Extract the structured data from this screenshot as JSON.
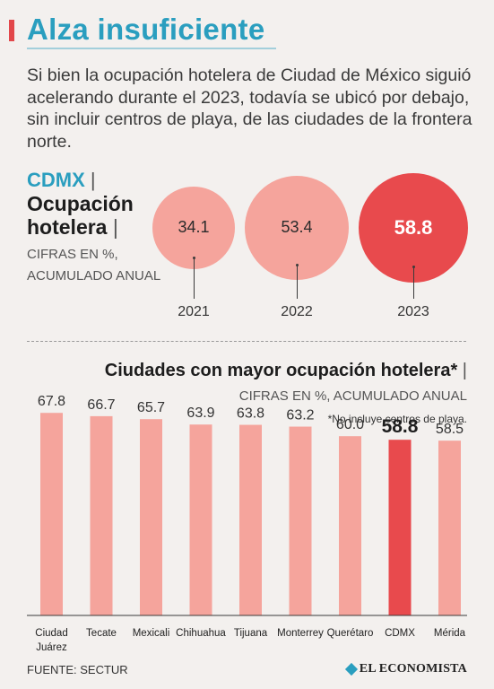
{
  "header": {
    "title": "Alza insuficiente",
    "intro": "Si bien la ocupación hotelera de Ciudad de México siguió acelerando durante el 2023, todavía se ubicó por debajo, sin incluir centros de playa, de las ciudades de la frontera norte."
  },
  "cdmx_section": {
    "city": "CDMX",
    "metric": "Ocupación hotelera",
    "pipe": "|",
    "note": "CIFRAS EN %, ACUMULADO ANUAL"
  },
  "bar_section": {
    "title": "Ciudades con mayor ocupación hotelera*",
    "pipe": "|",
    "subtitle": "CIFRAS EN %, ACUMULADO ANUAL",
    "footnote": "*No incluye centros de playa."
  },
  "footer": {
    "source": "FUENTE: SECTUR",
    "logo_text": "EL ECONOMISTA"
  },
  "colors": {
    "accent": "#2a9ebf",
    "bar": "#f5a49c",
    "highlight": "#e84a4d",
    "bubble": "#f5a49c"
  },
  "chart_data": [
    {
      "type": "bubble",
      "categories": [
        "2021",
        "2022",
        "2023"
      ],
      "values": [
        34.1,
        53.4,
        58.8
      ],
      "labels": [
        "34.1",
        "53.4",
        "58.8"
      ],
      "highlight_index": 2
    },
    {
      "type": "bar",
      "categories": [
        "Ciudad Juárez",
        "Tecate",
        "Mexicali",
        "Chihuahua",
        "Tijuana",
        "Monterrey",
        "Querétaro",
        "CDMX",
        "Mérida"
      ],
      "values": [
        67.8,
        66.7,
        65.7,
        63.9,
        63.8,
        63.2,
        60.0,
        58.8,
        58.5
      ],
      "labels": [
        "67.8",
        "66.7",
        "65.7",
        "63.9",
        "63.8",
        "63.2",
        "60.0",
        "58.8",
        "58.5"
      ],
      "highlight_index": 7
    }
  ]
}
